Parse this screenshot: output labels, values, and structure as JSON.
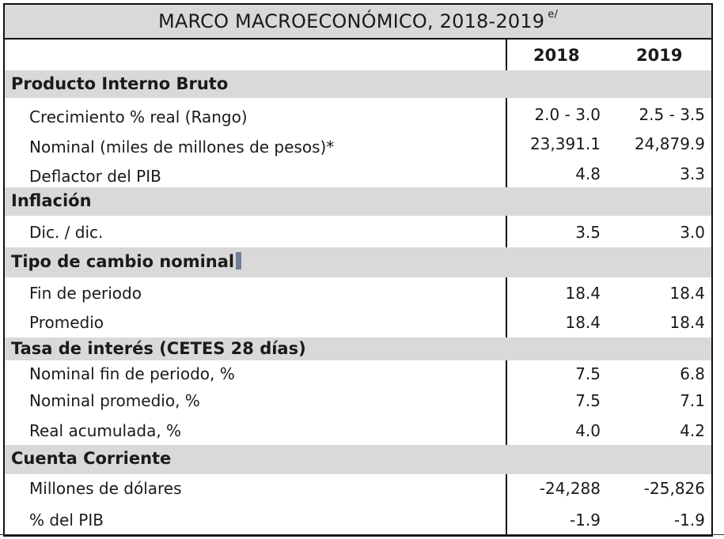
{
  "title": "MARCO MACROECONÓMICO, 2018-2019",
  "title_sup": "e/",
  "columns": [
    "2018",
    "2019"
  ],
  "sections": [
    {
      "label": "Producto Interno Bruto",
      "rows": [
        {
          "label": "Crecimiento % real (Rango)",
          "v2018": "2.0 - 3.0",
          "v2019": "2.5 - 3.5"
        },
        {
          "label": "Nominal (miles de millones de pesos)*",
          "v2018": "23,391.1",
          "v2019": "24,879.9"
        },
        {
          "label": "Deflactor del PIB",
          "v2018": "4.8",
          "v2019": "3.3"
        }
      ]
    },
    {
      "label": "Inflación",
      "rows": [
        {
          "label": "Dic. / dic.",
          "v2018": "3.5",
          "v2019": "3.0"
        }
      ]
    },
    {
      "label": "Tipo de cambio nominal",
      "rows": [
        {
          "label": "Fin de periodo",
          "v2018": "18.4",
          "v2019": "18.4"
        },
        {
          "label": "Promedio",
          "v2018": "18.4",
          "v2019": "18.4"
        }
      ]
    },
    {
      "label": "Tasa de interés (CETES 28 días)",
      "rows": [
        {
          "label": "Nominal fin de periodo, %",
          "v2018": "7.5",
          "v2019": "6.8"
        },
        {
          "label": "Nominal promedio, %",
          "v2018": "7.5",
          "v2019": "7.1"
        },
        {
          "label": "Real acumulada, %",
          "v2018": "4.0",
          "v2019": "4.2"
        }
      ]
    },
    {
      "label": "Cuenta Corriente",
      "rows": [
        {
          "label": "Millones de dólares",
          "v2018": "-24,288",
          "v2019": "-25,826"
        },
        {
          "label": "% del PIB",
          "v2018": "-1.9",
          "v2019": "-1.9"
        }
      ]
    }
  ]
}
